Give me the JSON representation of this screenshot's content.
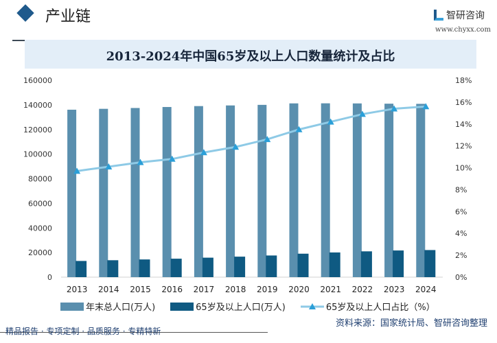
{
  "header": {
    "section": "产业链",
    "brand": "智研咨询",
    "url": "www.chyxx.com"
  },
  "chart_data": {
    "type": "bar+line",
    "title": "2013-2024年中国65岁及以上人口数量统计及占比",
    "categories": [
      "2013",
      "2014",
      "2015",
      "2016",
      "2017",
      "2018",
      "2019",
      "2020",
      "2021",
      "2022",
      "2023",
      "2024"
    ],
    "y_left": {
      "range": [
        0,
        160000
      ],
      "ticks": [
        "0",
        "20000",
        "40000",
        "60000",
        "80000",
        "100000",
        "120000",
        "140000",
        "160000"
      ]
    },
    "y_right": {
      "range": [
        0,
        18
      ],
      "ticks": [
        "0%",
        "2%",
        "4%",
        "6%",
        "8%",
        "10%",
        "12%",
        "14%",
        "16%",
        "18%"
      ]
    },
    "series": [
      {
        "name": "年末总人口(万人)",
        "type": "bar",
        "axis": "left",
        "color": "#5a8fae",
        "values": [
          136072,
          136782,
          137462,
          138271,
          139008,
          139538,
          140005,
          141212,
          141260,
          141175,
          140967,
          140828
        ]
      },
      {
        "name": "65岁及以上人口(万人)",
        "type": "bar",
        "axis": "left",
        "color": "#0f5a82",
        "values": [
          13161,
          13755,
          14386,
          15003,
          15831,
          16658,
          17603,
          19064,
          20056,
          20978,
          21676,
          22023
        ]
      },
      {
        "name": "65岁及以上人口占比（%）",
        "type": "line",
        "axis": "right",
        "color": "#8ecae6",
        "marker_color": "#2b9fd8",
        "values": [
          9.7,
          10.1,
          10.5,
          10.8,
          11.4,
          11.9,
          12.6,
          13.5,
          14.2,
          14.9,
          15.4,
          15.6
        ]
      }
    ],
    "grid": false,
    "legend": "bottom"
  },
  "footer": {
    "source": "资料来源：国家统计局、智研咨询整理",
    "slogan": "精品报告 · 专项定制 · 品质服务 · 专精特新"
  }
}
